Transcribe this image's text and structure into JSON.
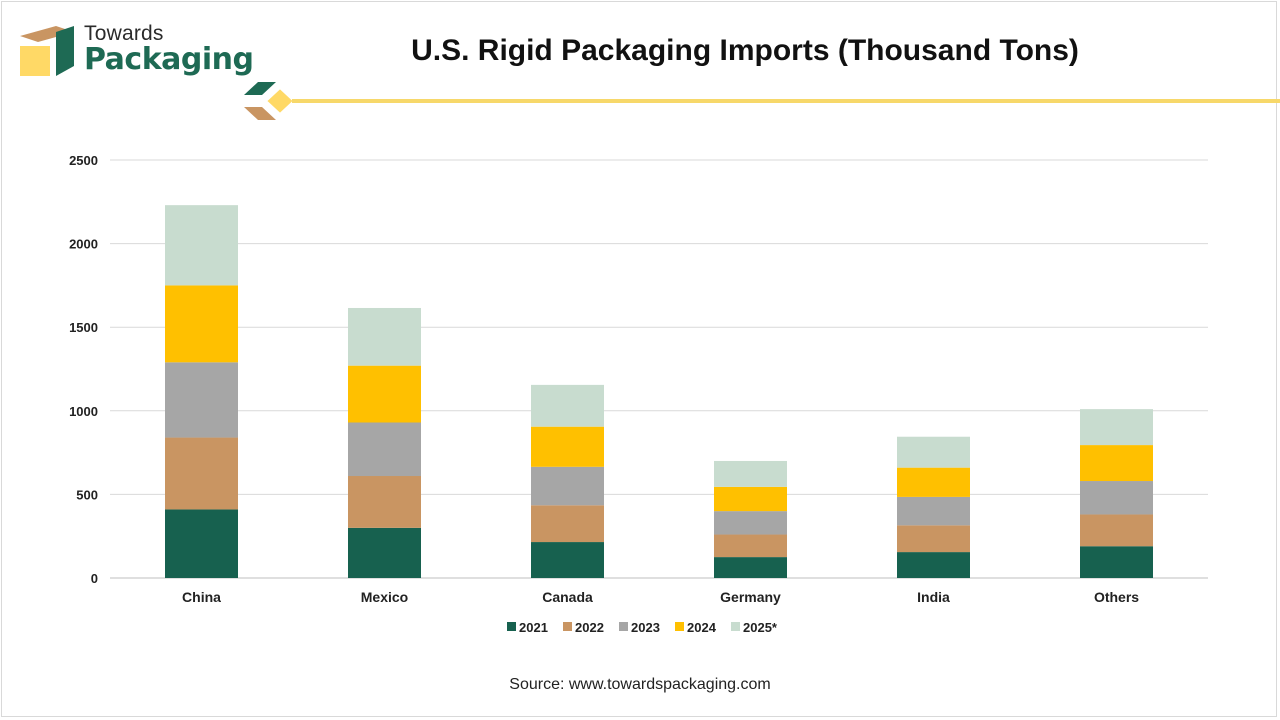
{
  "logo": {
    "line1": "Towards",
    "line2": "Packaging"
  },
  "title": "U.S. Rigid Packaging Imports (Thousand Tons)",
  "source": "Source: www.towardspackaging.com",
  "colors": {
    "2021": "#17614f",
    "2022": "#c99562",
    "2023": "#a6a6a6",
    "2024": "#ffc000",
    "2025*": "#c8dccf",
    "accent": "#f7d86a",
    "brand": "#1e6a54"
  },
  "chart_data": {
    "type": "bar",
    "stacked": true,
    "title": "U.S. Rigid Packaging Imports (Thousand Tons)",
    "xlabel": "",
    "ylabel": "",
    "ylim": [
      0,
      2500
    ],
    "yticks": [
      0,
      500,
      1000,
      1500,
      2000,
      2500
    ],
    "grid": true,
    "legend": "bottom",
    "categories": [
      "China",
      "Mexico",
      "Canada",
      "Germany",
      "India",
      "Others"
    ],
    "series": [
      {
        "name": "2021",
        "values": [
          410,
          300,
          215,
          125,
          155,
          190
        ]
      },
      {
        "name": "2022",
        "values": [
          430,
          310,
          220,
          135,
          160,
          190
        ]
      },
      {
        "name": "2023",
        "values": [
          450,
          320,
          230,
          140,
          170,
          200
        ]
      },
      {
        "name": "2024",
        "values": [
          460,
          340,
          240,
          145,
          175,
          215
        ]
      },
      {
        "name": "2025*",
        "values": [
          480,
          345,
          250,
          155,
          185,
          215
        ]
      }
    ]
  }
}
